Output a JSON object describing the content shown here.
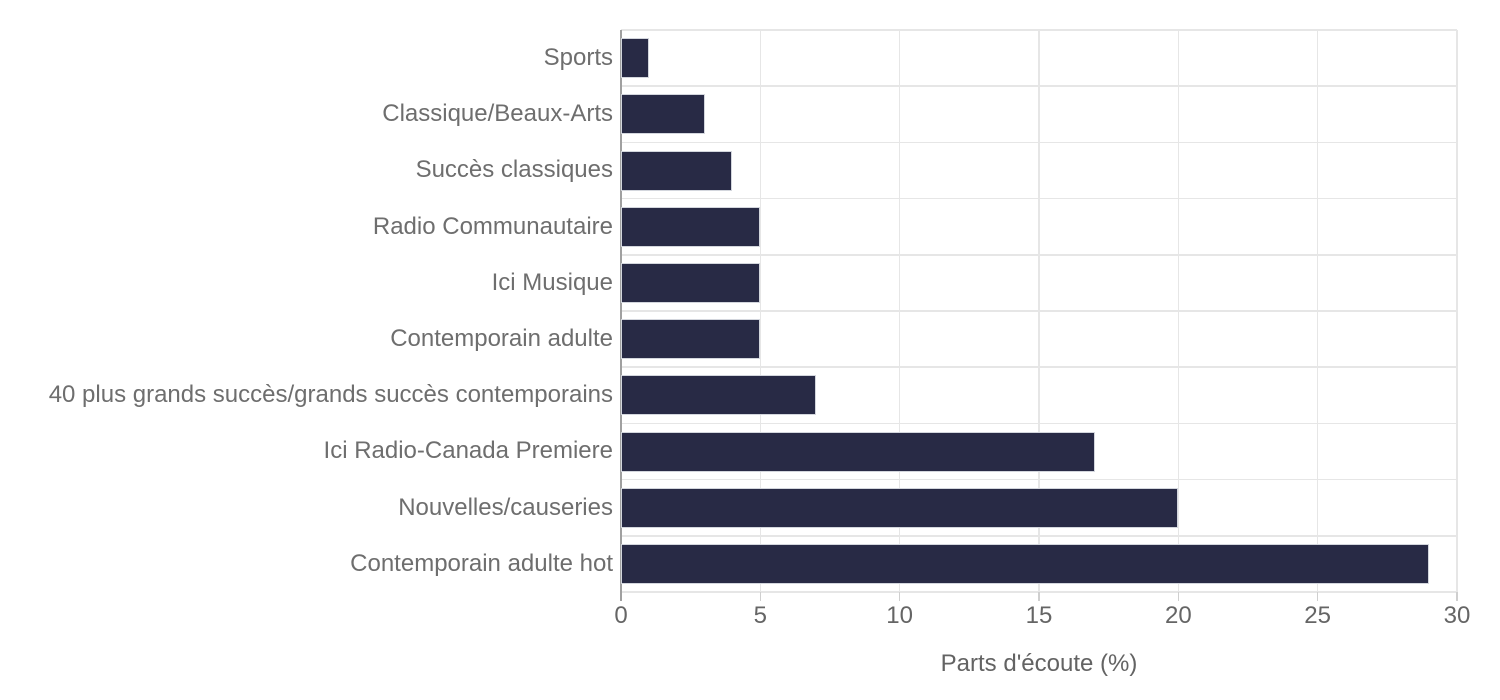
{
  "chart_data": {
    "type": "bar",
    "orientation": "horizontal",
    "title": "",
    "xlabel": "Parts d'écoute (%)",
    "ylabel": "",
    "categories": [
      "Sports",
      "Classique/Beaux-Arts",
      "Succès classiques",
      "Radio Communautaire",
      "Ici Musique",
      "Contemporain adulte",
      "40 plus grands succès/grands succès contemporains",
      "Ici Radio-Canada Premiere",
      "Nouvelles/causeries",
      "Contemporain adulte hot"
    ],
    "values": [
      1,
      3,
      4,
      5,
      5,
      5,
      7,
      17,
      20,
      29
    ],
    "x_ticks": [
      0,
      5,
      10,
      15,
      20,
      25,
      30
    ],
    "xlim": [
      0,
      30
    ],
    "grid": true,
    "legend": false,
    "colors": {
      "bar": "#282A45",
      "bar_border": "#d3d6dd",
      "grid": "#e6e6e6",
      "zero_line": "#a0a0a0",
      "tick_mark": "#cfcfcf",
      "category_label": "#6e6e6e",
      "tick_label": "#656565",
      "axis_title": "#636363",
      "background": "#ffffff"
    }
  }
}
